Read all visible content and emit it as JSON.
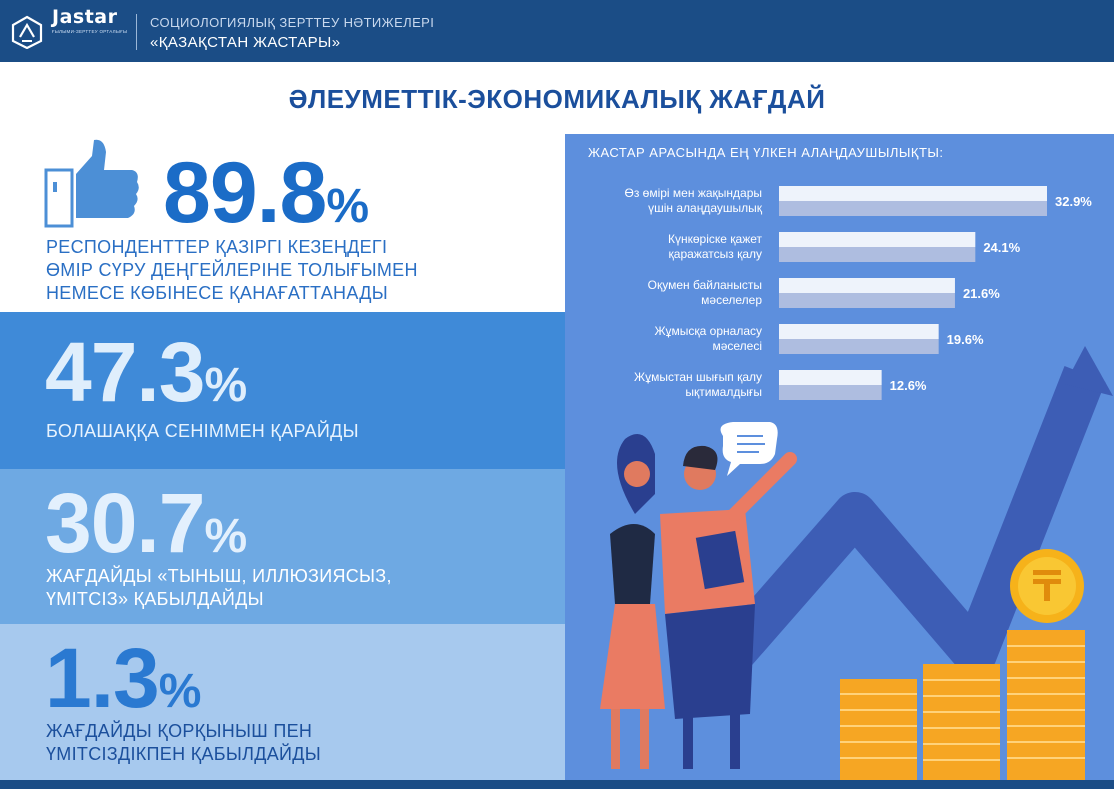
{
  "header": {
    "logo_text": "Jastar",
    "logo_subtext": "ҒЫЛЫМИ-ЗЕРТТЕУ ОРТАЛЫҒЫ",
    "line1": "СОЦИОЛОГИЯЛЫҚ ЗЕРТТЕУ НӘТИЖЕЛЕРІ",
    "line2": "«ҚАЗАҚСТАН ЖАСТАРЫ»"
  },
  "page_title": "ӘЛЕУМЕТТІК-ЭКОНОМИКАЛЫҚ ЖАҒДАЙ",
  "stats": [
    {
      "value": "89.8",
      "unit": "%",
      "text": "РЕСПОНДЕНТТЕР ҚАЗІРГІ КЕЗЕҢДЕГІ\nӨМІР СҮРУ ДЕҢГЕЙЛЕРІНЕ ТОЛЫҒЫМЕН\nНЕМЕСЕ КӨБІНЕСЕ ҚАНАҒАТТАНАДЫ",
      "color": "#ffffff"
    },
    {
      "value": "47.3",
      "unit": "%",
      "text": "БОЛАШАҚҚА СЕНІММЕН ҚАРАЙДЫ",
      "color": "#3f8ad8"
    },
    {
      "value": "30.7",
      "unit": "%",
      "text": "ЖАҒДАЙДЫ «ТЫНЫШ, ИЛЛЮЗИЯСЫЗ,\nҮМІТСІЗ» ҚАБЫЛДАЙДЫ",
      "color": "#6ea9e3"
    },
    {
      "value": "1.3",
      "unit": "%",
      "text": "ЖАҒДАЙДЫ ҚОРҚЫНЫШ ПЕН\nҮМІТСІЗДІКПЕН ҚАБЫЛДАЙДЫ",
      "color": "#a7c9ee"
    }
  ],
  "icons": {
    "like": "thumbs-up-icon",
    "logo": "jastar-logo-icon",
    "coin": "tenge-coin-icon"
  },
  "colors": {
    "header": "#1b4d86",
    "title": "#1b4f9c",
    "panel": "#5d8fdd",
    "coin": "#f6b21a"
  },
  "chart_data": {
    "type": "bar",
    "orientation": "horizontal",
    "title": "ЖАСТАР АРАСЫНДА ЕҢ ҮЛКЕН АЛАҢДАУШЫЛЫҚТЫ:",
    "categories": [
      [
        "Өз өмірі мен жақындары",
        "үшін алаңдаушылық"
      ],
      [
        "Күнкөріске қажет",
        "қаражатсыз қалу"
      ],
      [
        "Оқумен байланысты",
        "мәселелер"
      ],
      [
        "Жұмысқа орналасу",
        "мәселесі"
      ],
      [
        "Жұмыстан шығып қалу",
        "ықтималдығы"
      ]
    ],
    "values": [
      32.9,
      24.1,
      21.6,
      19.6,
      12.6
    ],
    "labels": [
      "32.9%",
      "24.1%",
      "21.6%",
      "19.6%",
      "12.6%"
    ],
    "xlim": [
      0,
      32.9
    ],
    "grid": false
  }
}
